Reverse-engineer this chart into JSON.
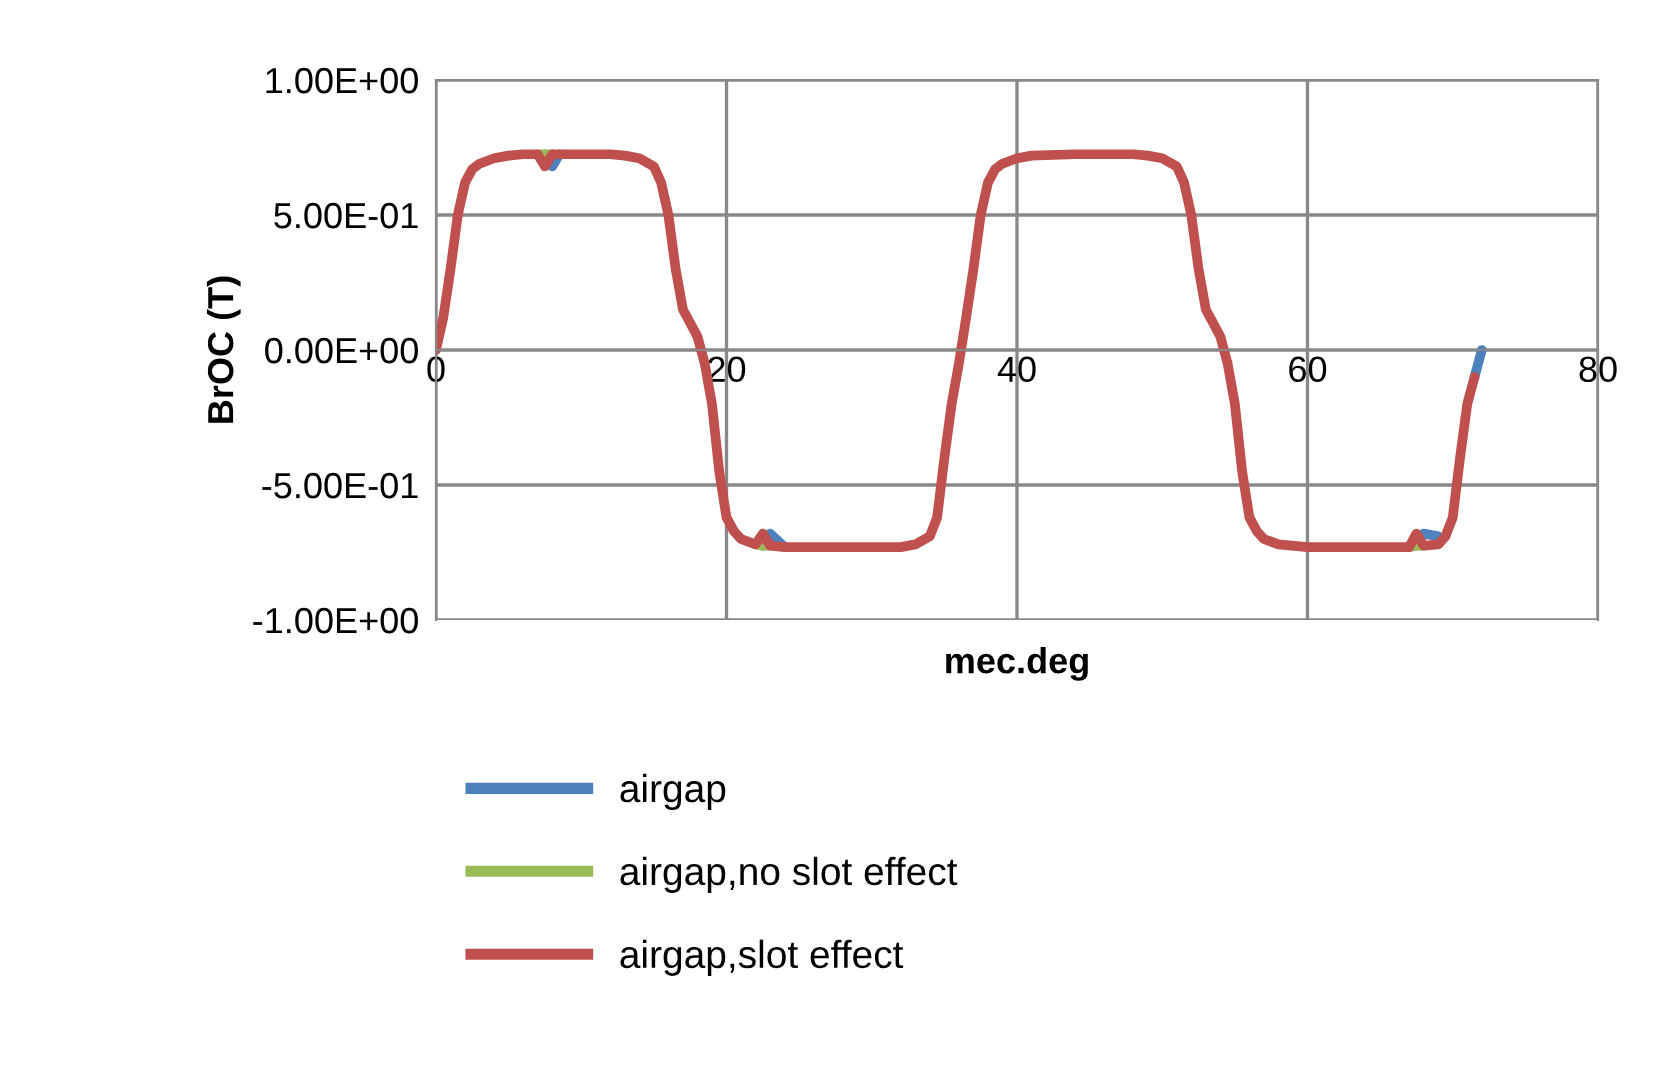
{
  "chart_data": {
    "type": "line",
    "xlabel": "mec.deg",
    "ylabel": "BrOC (T)",
    "x": [
      0,
      0.5,
      1,
      1.5,
      2,
      2.5,
      3,
      4,
      5,
      6,
      7,
      7.5,
      8,
      8.5,
      10,
      12,
      13,
      14,
      15,
      15.5,
      16,
      16.5,
      17,
      18,
      18.5,
      19,
      19.5,
      20,
      20.5,
      21,
      22,
      22.5,
      23,
      24,
      26,
      30,
      32,
      33,
      34,
      34.5,
      35,
      35.5,
      36,
      36.5,
      37,
      37.5,
      38,
      38.5,
      39,
      40,
      41,
      44,
      48,
      49,
      50,
      51,
      51.5,
      52,
      52.5,
      53,
      54,
      54.5,
      55,
      55.5,
      56,
      56.5,
      57,
      58,
      60,
      64,
      66,
      67,
      67.5,
      68,
      69,
      69.5,
      70,
      70.5,
      71,
      71.5,
      72
    ],
    "series": [
      {
        "name": "airgap",
        "color": "#4f81bd",
        "values": [
          null,
          null,
          null,
          null,
          null,
          null,
          null,
          null,
          null,
          null,
          null,
          0.725,
          0.68,
          0.725,
          null,
          null,
          null,
          null,
          null,
          null,
          null,
          null,
          null,
          null,
          null,
          null,
          null,
          null,
          null,
          null,
          null,
          -0.725,
          -0.68,
          -0.73,
          null,
          null,
          null,
          null,
          null,
          null,
          null,
          null,
          null,
          null,
          null,
          null,
          null,
          null,
          null,
          null,
          null,
          null,
          null,
          null,
          null,
          null,
          null,
          null,
          null,
          null,
          null,
          null,
          null,
          null,
          null,
          null,
          null,
          null,
          null,
          null,
          null,
          null,
          -0.725,
          -0.68,
          -0.69,
          null,
          null,
          null,
          null,
          -0.1,
          0
        ]
      },
      {
        "name": "airgap,no slot effect",
        "color": "#9bbb59",
        "values": [
          null,
          null,
          null,
          null,
          null,
          null,
          null,
          null,
          null,
          null,
          0.725,
          0.725,
          0.725,
          null,
          null,
          null,
          null,
          null,
          null,
          null,
          null,
          null,
          null,
          null,
          null,
          null,
          null,
          null,
          null,
          null,
          -0.72,
          -0.725,
          -0.725,
          null,
          null,
          null,
          null,
          null,
          null,
          null,
          null,
          null,
          null,
          null,
          null,
          null,
          null,
          null,
          null,
          null,
          null,
          null,
          null,
          null,
          null,
          null,
          null,
          null,
          null,
          null,
          null,
          null,
          null,
          null,
          null,
          null,
          null,
          null,
          null,
          null,
          null,
          -0.73,
          -0.725,
          -0.725,
          null,
          null,
          null,
          null,
          null,
          null,
          null
        ]
      },
      {
        "name": "airgap,slot effect",
        "color": "#c0504d",
        "values": [
          0,
          0.12,
          0.3,
          0.5,
          0.62,
          0.67,
          0.69,
          0.71,
          0.72,
          0.725,
          0.725,
          0.68,
          0.725,
          0.725,
          0.725,
          0.725,
          0.72,
          0.71,
          0.68,
          0.62,
          0.5,
          0.3,
          0.15,
          0.05,
          -0.05,
          -0.2,
          -0.45,
          -0.62,
          -0.67,
          -0.7,
          -0.72,
          -0.68,
          -0.725,
          -0.73,
          -0.73,
          -0.73,
          -0.73,
          -0.72,
          -0.69,
          -0.62,
          -0.4,
          -0.2,
          -0.05,
          0.12,
          0.3,
          0.5,
          0.62,
          0.67,
          0.69,
          0.71,
          0.72,
          0.725,
          0.725,
          0.72,
          0.71,
          0.68,
          0.62,
          0.5,
          0.3,
          0.15,
          0.05,
          -0.05,
          -0.2,
          -0.45,
          -0.62,
          -0.67,
          -0.7,
          -0.72,
          -0.73,
          -0.73,
          -0.73,
          -0.73,
          -0.68,
          -0.725,
          -0.72,
          -0.69,
          -0.62,
          -0.4,
          -0.2,
          -0.1,
          null
        ]
      }
    ],
    "xlim": [
      0,
      80
    ],
    "xticks": [
      0,
      20,
      40,
      60,
      80
    ],
    "ylim": [
      -1,
      1
    ],
    "yticks": [
      {
        "value": -1,
        "label": "-1.00E+00"
      },
      {
        "value": -0.5,
        "label": "-5.00E-01"
      },
      {
        "value": 0,
        "label": "0.00E+00"
      },
      {
        "value": 0.5,
        "label": "5.00E-01"
      },
      {
        "value": 1,
        "label": "1.00E+00"
      }
    ],
    "grid": true,
    "legend": "bottom",
    "marker": "none",
    "line_style": "solid"
  }
}
